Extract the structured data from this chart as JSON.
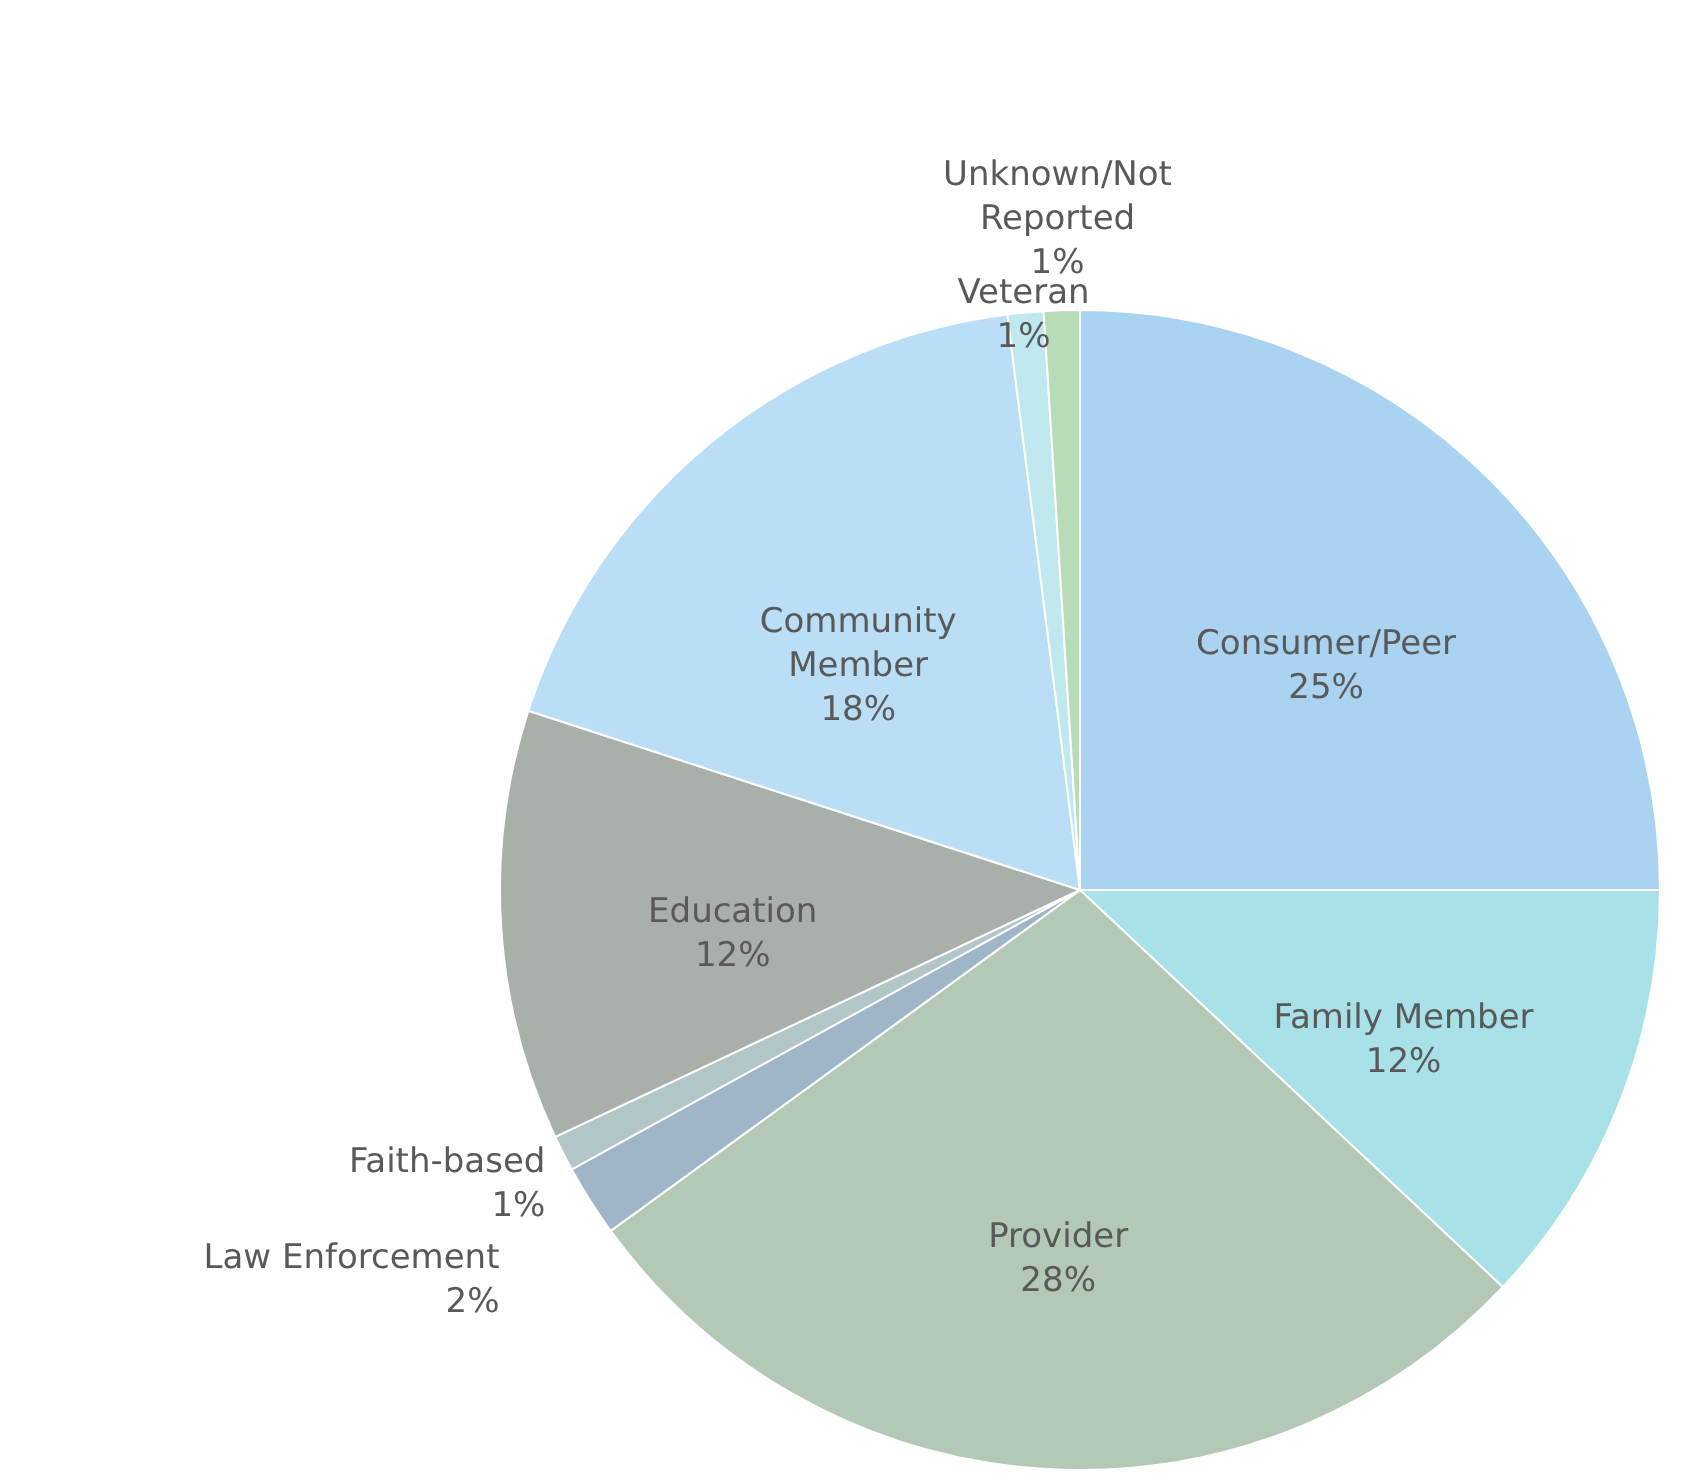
{
  "chart_data": {
    "type": "pie",
    "categories": [
      "Consumer/Peer",
      "Family Member",
      "Provider",
      "Law Enforcement",
      "Faith-based",
      "Education",
      "Community Member",
      "Veteran",
      "Unknown/Not Reported"
    ],
    "values": [
      25,
      12,
      28,
      2,
      1,
      12,
      18,
      1,
      1
    ],
    "value_labels": [
      "25%",
      "12%",
      "28%",
      "2%",
      "1%",
      "12%",
      "18%",
      "1%",
      "1%"
    ],
    "colors": [
      "#a9d3f0",
      "#a9e1e8",
      "#b3c9b5",
      "#9fb6c9",
      "#b2c6c8",
      "#a9b0a9",
      "#b9def5",
      "#bfe9ef",
      "#b8dbb8"
    ]
  }
}
